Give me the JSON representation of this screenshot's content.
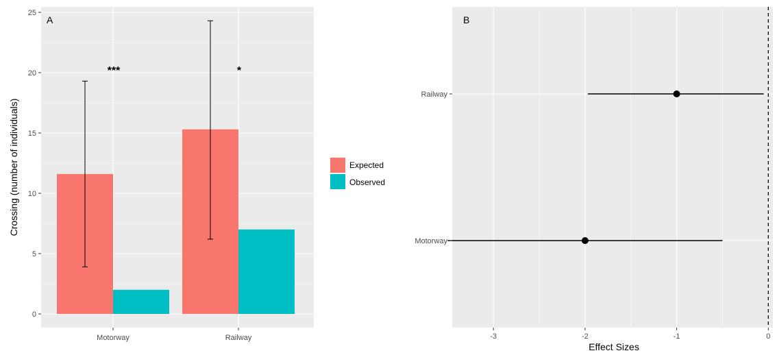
{
  "chart_data": [
    {
      "type": "bar",
      "panel_label": "A",
      "ylabel": "Crossing (number of individuals)",
      "xlabel": "",
      "categories": [
        "Motorway",
        "Railway"
      ],
      "ylim": [
        0,
        25
      ],
      "yticks": [
        "0",
        "5",
        "10",
        "15",
        "20",
        "25"
      ],
      "series": [
        {
          "name": "Expected",
          "values": [
            11.6,
            15.3
          ],
          "color": "#F8766D",
          "error_low": [
            3.9,
            6.2
          ],
          "error_high": [
            19.3,
            24.3
          ]
        },
        {
          "name": "Observed",
          "values": [
            2.0,
            7.0
          ],
          "color": "#00BFC4"
        }
      ],
      "annotations": [
        "***",
        "*"
      ],
      "legend": "right",
      "grid": true
    },
    {
      "type": "scatter",
      "panel_label": "B",
      "xlabel": "Effect Sizes",
      "ylabel": "",
      "categories": [
        "Motorway",
        "Railway"
      ],
      "xlim": [
        -3.45,
        0.05
      ],
      "xticks": [
        "-3",
        "-2",
        "-1",
        "0"
      ],
      "points": [
        {
          "category": "Railway",
          "estimate": -1.0,
          "ci_low": -1.97,
          "ci_high": -0.05
        },
        {
          "category": "Motorway",
          "estimate": -2.0,
          "ci_low": -3.5,
          "ci_high": -0.5
        }
      ],
      "reference_line": 0,
      "grid": true
    }
  ]
}
